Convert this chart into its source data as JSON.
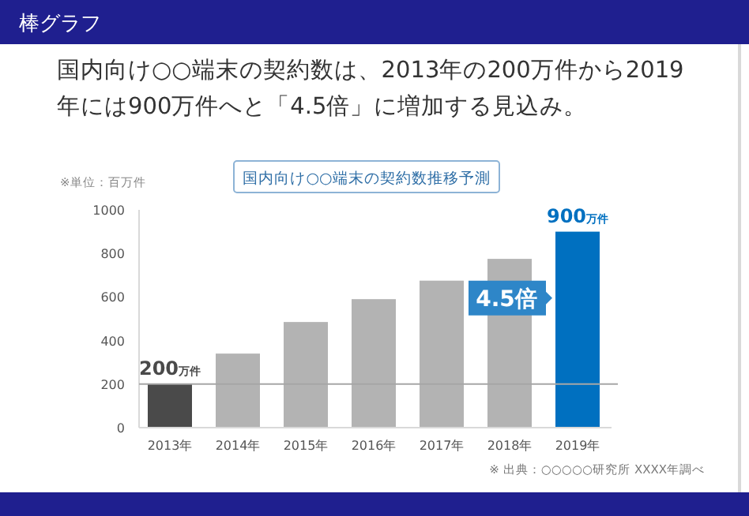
{
  "chart_data": {
    "type": "bar",
    "title": "国内向け○○端末の契約数推移予測",
    "categories": [
      "2013年",
      "2014年",
      "2015年",
      "2016年",
      "2017年",
      "2018年",
      "2019年"
    ],
    "values": [
      200,
      340,
      485,
      590,
      675,
      775,
      900
    ],
    "colors": [
      "#4a4a4a",
      "#b3b3b3",
      "#b3b3b3",
      "#b3b3b3",
      "#b3b3b3",
      "#b3b3b3",
      "#0070c0"
    ],
    "value_labels": [
      "200$^{万件}$",
      null,
      null,
      null,
      null,
      null,
      "900$^{万件}$"
    ],
    "ylim": [
      0,
      1000
    ],
    "yticks": [
      0,
      200,
      400,
      600,
      800,
      1000
    ],
    "ref_lines": [
      {
        "axis": "y",
        "value": 200,
        "color": "#a6a6a6"
      }
    ],
    "annotations": [
      "棒グラフ",
      "国内向け○○端末の契約数は、2013年の200万件から2019年には900万件へと「4.5倍」に増加する見込み。",
      "※単位：百万件",
      "4.5倍",
      "※ 出典：○○○○○研究所 XXXX年調べ"
    ]
  }
}
